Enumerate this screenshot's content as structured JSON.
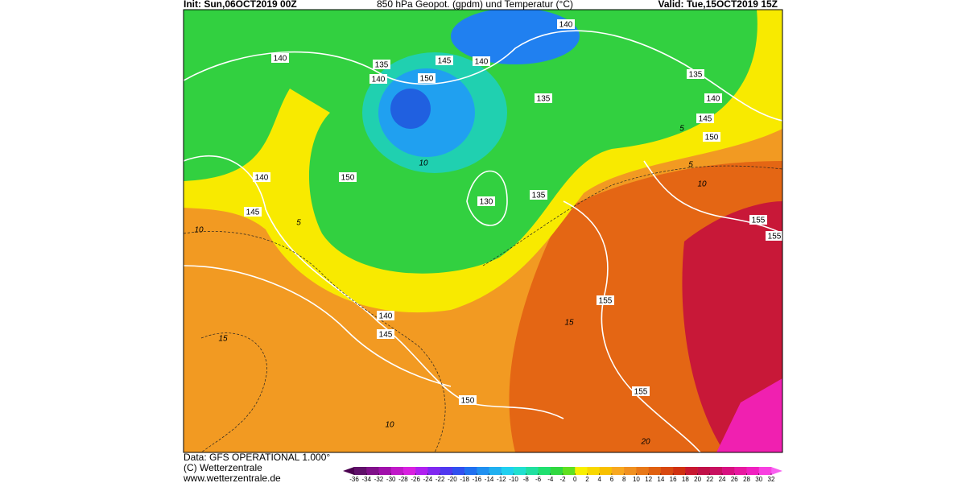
{
  "header": {
    "init": "Init: Sun,06OCT2019 00Z",
    "title": "850 hPa Geopot. (gpdm) und Temperatur (°C)",
    "valid": "Valid: Tue,15OCT2019 15Z"
  },
  "footer": {
    "data": "Data: GFS OPERATIONAL 1.000°",
    "copyright": "(C) Wetterzentrale",
    "url": "www.wetterzentrale.de"
  },
  "colorbar": {
    "ticks": [
      -36,
      -34,
      -32,
      -30,
      -28,
      -26,
      -24,
      -22,
      -20,
      -18,
      -16,
      -14,
      -12,
      -10,
      -8,
      -6,
      -4,
      -2,
      0,
      2,
      4,
      6,
      8,
      10,
      12,
      14,
      16,
      18,
      20,
      22,
      24,
      26,
      28,
      30,
      32
    ]
  },
  "isobar_labels": [
    "140",
    "135",
    "140",
    "145",
    "140",
    "150",
    "140",
    "135",
    "140",
    "145",
    "150",
    "135",
    "140",
    "150",
    "130",
    "135",
    "145",
    "155",
    "155",
    "140",
    "145",
    "155",
    "150",
    "155"
  ],
  "isotherm_labels": [
    "10",
    "5",
    "15",
    "10",
    "15",
    "20",
    "10",
    "5",
    "10",
    "5"
  ]
}
